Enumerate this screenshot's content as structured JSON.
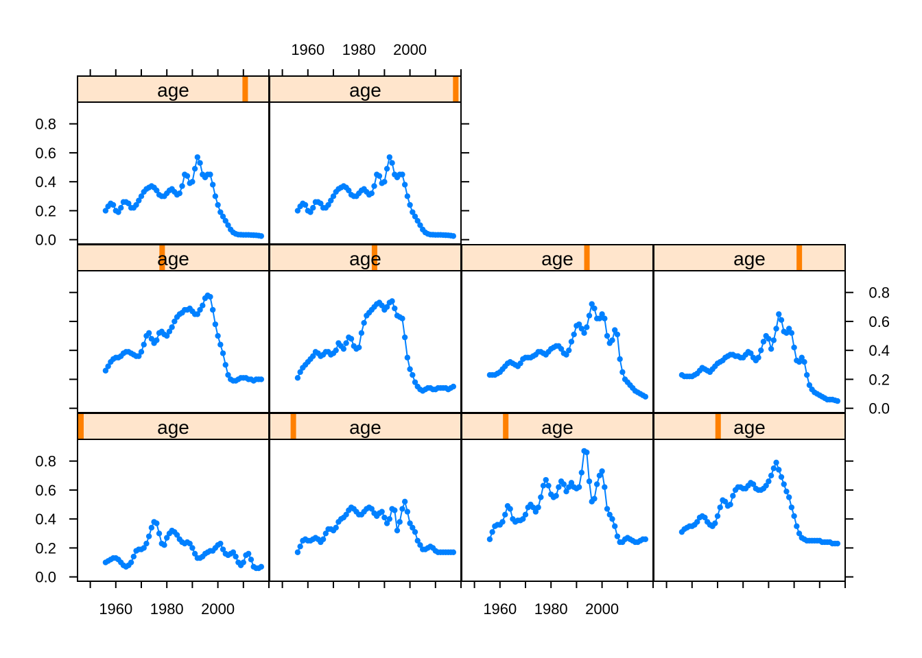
{
  "chart_data": {
    "type": "line",
    "layout": "lattice",
    "colors": {
      "series": "#0080ff",
      "strip_background": "#ffe5cc",
      "strip_indicator": "#ff8000",
      "frame": "#000000"
    },
    "x_ticks": [
      1960,
      1980,
      2000
    ],
    "y_ticks": [
      0.0,
      0.2,
      0.4,
      0.6,
      0.8
    ],
    "y_tick_labels": [
      "0.0",
      "0.2",
      "0.4",
      "0.6",
      "0.8"
    ],
    "xlim": [
      1945,
      2020
    ],
    "ylim": [
      -0.03,
      0.95
    ],
    "x": [
      1956,
      1957,
      1958,
      1959,
      1960,
      1961,
      1962,
      1963,
      1964,
      1965,
      1966,
      1967,
      1968,
      1969,
      1970,
      1971,
      1972,
      1973,
      1974,
      1975,
      1976,
      1977,
      1978,
      1979,
      1980,
      1981,
      1982,
      1983,
      1984,
      1985,
      1986,
      1987,
      1988,
      1989,
      1990,
      1991,
      1992,
      1993,
      1994,
      1995,
      1996,
      1997,
      1998,
      1999,
      2000,
      2001,
      2002,
      2003,
      2004,
      2005,
      2006,
      2007,
      2008,
      2009,
      2010,
      2011,
      2012,
      2013,
      2014,
      2015,
      2016,
      2017
    ],
    "panels": [
      {
        "strip_label": "age",
        "indicator": 0.89,
        "values": [
          0.2,
          0.23,
          0.25,
          0.24,
          0.2,
          0.19,
          0.22,
          0.26,
          0.26,
          0.25,
          0.22,
          0.22,
          0.24,
          0.27,
          0.3,
          0.33,
          0.35,
          0.36,
          0.37,
          0.36,
          0.34,
          0.31,
          0.3,
          0.3,
          0.32,
          0.34,
          0.35,
          0.33,
          0.31,
          0.32,
          0.37,
          0.45,
          0.44,
          0.39,
          0.4,
          0.49,
          0.57,
          0.53,
          0.45,
          0.43,
          0.45,
          0.45,
          0.38,
          0.3,
          0.24,
          0.19,
          0.16,
          0.13,
          0.1,
          0.07,
          0.05,
          0.04,
          0.035,
          0.034,
          0.033,
          0.033,
          0.033,
          0.032,
          0.031,
          0.03,
          0.028,
          0.025
        ]
      },
      {
        "strip_label": "age",
        "indicator": 0.99,
        "values": [
          0.2,
          0.23,
          0.25,
          0.24,
          0.2,
          0.19,
          0.22,
          0.26,
          0.26,
          0.25,
          0.22,
          0.22,
          0.24,
          0.27,
          0.3,
          0.33,
          0.35,
          0.36,
          0.37,
          0.36,
          0.34,
          0.31,
          0.3,
          0.3,
          0.32,
          0.34,
          0.35,
          0.33,
          0.31,
          0.32,
          0.37,
          0.45,
          0.44,
          0.39,
          0.4,
          0.49,
          0.57,
          0.53,
          0.45,
          0.43,
          0.45,
          0.45,
          0.38,
          0.3,
          0.24,
          0.19,
          0.16,
          0.13,
          0.1,
          0.07,
          0.05,
          0.04,
          0.035,
          0.034,
          0.033,
          0.033,
          0.033,
          0.032,
          0.031,
          0.03,
          0.028,
          0.025
        ]
      },
      {
        "strip_label": "age",
        "indicator": 0.44,
        "values": [
          0.26,
          0.29,
          0.32,
          0.34,
          0.35,
          0.35,
          0.36,
          0.38,
          0.39,
          0.39,
          0.38,
          0.37,
          0.36,
          0.36,
          0.39,
          0.44,
          0.5,
          0.52,
          0.48,
          0.45,
          0.47,
          0.52,
          0.53,
          0.51,
          0.5,
          0.53,
          0.56,
          0.6,
          0.63,
          0.65,
          0.66,
          0.68,
          0.68,
          0.69,
          0.67,
          0.65,
          0.65,
          0.68,
          0.71,
          0.76,
          0.78,
          0.77,
          0.68,
          0.58,
          0.5,
          0.44,
          0.38,
          0.3,
          0.23,
          0.2,
          0.19,
          0.19,
          0.2,
          0.21,
          0.21,
          0.21,
          0.2,
          0.2,
          0.19,
          0.2,
          0.2,
          0.2
        ]
      },
      {
        "strip_label": "age",
        "indicator": 0.55,
        "values": [
          0.21,
          0.25,
          0.28,
          0.3,
          0.32,
          0.34,
          0.36,
          0.39,
          0.38,
          0.36,
          0.37,
          0.39,
          0.39,
          0.37,
          0.38,
          0.4,
          0.45,
          0.43,
          0.41,
          0.45,
          0.49,
          0.48,
          0.43,
          0.41,
          0.42,
          0.52,
          0.59,
          0.64,
          0.66,
          0.68,
          0.7,
          0.72,
          0.73,
          0.71,
          0.68,
          0.7,
          0.73,
          0.74,
          0.69,
          0.64,
          0.63,
          0.62,
          0.49,
          0.35,
          0.27,
          0.23,
          0.18,
          0.15,
          0.13,
          0.12,
          0.13,
          0.14,
          0.14,
          0.13,
          0.13,
          0.14,
          0.14,
          0.14,
          0.14,
          0.13,
          0.14,
          0.15
        ]
      },
      {
        "strip_label": "age",
        "indicator": 0.66,
        "values": [
          0.23,
          0.23,
          0.23,
          0.24,
          0.25,
          0.27,
          0.29,
          0.31,
          0.32,
          0.31,
          0.3,
          0.29,
          0.31,
          0.34,
          0.35,
          0.35,
          0.35,
          0.36,
          0.37,
          0.39,
          0.39,
          0.38,
          0.37,
          0.39,
          0.41,
          0.42,
          0.43,
          0.43,
          0.41,
          0.38,
          0.37,
          0.4,
          0.46,
          0.51,
          0.57,
          0.58,
          0.55,
          0.52,
          0.56,
          0.64,
          0.72,
          0.69,
          0.62,
          0.62,
          0.65,
          0.62,
          0.5,
          0.45,
          0.47,
          0.54,
          0.51,
          0.34,
          0.25,
          0.2,
          0.18,
          0.16,
          0.14,
          0.12,
          0.11,
          0.1,
          0.09,
          0.08
        ]
      },
      {
        "strip_label": "age",
        "indicator": 0.77,
        "values": [
          0.23,
          0.22,
          0.22,
          0.22,
          0.22,
          0.23,
          0.24,
          0.26,
          0.28,
          0.27,
          0.26,
          0.25,
          0.27,
          0.29,
          0.31,
          0.32,
          0.33,
          0.35,
          0.36,
          0.37,
          0.37,
          0.36,
          0.36,
          0.35,
          0.35,
          0.37,
          0.39,
          0.38,
          0.35,
          0.33,
          0.35,
          0.4,
          0.46,
          0.5,
          0.48,
          0.41,
          0.47,
          0.55,
          0.65,
          0.61,
          0.53,
          0.52,
          0.55,
          0.52,
          0.42,
          0.33,
          0.32,
          0.35,
          0.32,
          0.23,
          0.16,
          0.13,
          0.11,
          0.1,
          0.09,
          0.08,
          0.07,
          0.06,
          0.06,
          0.06,
          0.055,
          0.05
        ]
      },
      {
        "strip_label": "age",
        "indicator": 0.0,
        "values": [
          0.1,
          0.11,
          0.12,
          0.13,
          0.13,
          0.12,
          0.1,
          0.08,
          0.07,
          0.08,
          0.1,
          0.14,
          0.18,
          0.19,
          0.19,
          0.2,
          0.23,
          0.28,
          0.34,
          0.38,
          0.37,
          0.3,
          0.23,
          0.22,
          0.27,
          0.3,
          0.32,
          0.31,
          0.29,
          0.26,
          0.24,
          0.23,
          0.24,
          0.23,
          0.2,
          0.16,
          0.13,
          0.13,
          0.14,
          0.16,
          0.17,
          0.18,
          0.18,
          0.2,
          0.22,
          0.23,
          0.19,
          0.16,
          0.15,
          0.16,
          0.17,
          0.14,
          0.1,
          0.08,
          0.1,
          0.15,
          0.16,
          0.12,
          0.07,
          0.06,
          0.06,
          0.07
        ]
      },
      {
        "strip_label": "age",
        "indicator": 0.11,
        "values": [
          0.17,
          0.21,
          0.25,
          0.26,
          0.25,
          0.25,
          0.26,
          0.27,
          0.26,
          0.24,
          0.26,
          0.3,
          0.33,
          0.33,
          0.32,
          0.34,
          0.38,
          0.4,
          0.41,
          0.43,
          0.46,
          0.48,
          0.47,
          0.45,
          0.43,
          0.43,
          0.45,
          0.47,
          0.48,
          0.47,
          0.44,
          0.42,
          0.44,
          0.45,
          0.41,
          0.37,
          0.4,
          0.47,
          0.46,
          0.32,
          0.38,
          0.47,
          0.52,
          0.45,
          0.37,
          0.34,
          0.31,
          0.25,
          0.22,
          0.19,
          0.19,
          0.2,
          0.21,
          0.2,
          0.18,
          0.17,
          0.17,
          0.17,
          0.17,
          0.17,
          0.17,
          0.17
        ]
      },
      {
        "strip_label": "age",
        "indicator": 0.22,
        "values": [
          0.26,
          0.31,
          0.35,
          0.36,
          0.36,
          0.38,
          0.43,
          0.49,
          0.47,
          0.4,
          0.38,
          0.39,
          0.39,
          0.4,
          0.43,
          0.48,
          0.5,
          0.48,
          0.45,
          0.48,
          0.55,
          0.63,
          0.67,
          0.63,
          0.57,
          0.55,
          0.56,
          0.62,
          0.66,
          0.64,
          0.59,
          0.62,
          0.65,
          0.62,
          0.61,
          0.62,
          0.72,
          0.87,
          0.86,
          0.66,
          0.52,
          0.54,
          0.64,
          0.7,
          0.73,
          0.62,
          0.47,
          0.43,
          0.4,
          0.35,
          0.28,
          0.24,
          0.24,
          0.26,
          0.27,
          0.26,
          0.25,
          0.24,
          0.24,
          0.25,
          0.26,
          0.26
        ]
      },
      {
        "strip_label": "age",
        "indicator": 0.33,
        "values": [
          0.31,
          0.33,
          0.34,
          0.35,
          0.35,
          0.36,
          0.38,
          0.41,
          0.42,
          0.41,
          0.38,
          0.36,
          0.35,
          0.37,
          0.42,
          0.48,
          0.53,
          0.52,
          0.49,
          0.5,
          0.56,
          0.6,
          0.62,
          0.62,
          0.61,
          0.61,
          0.63,
          0.65,
          0.64,
          0.61,
          0.6,
          0.6,
          0.61,
          0.63,
          0.66,
          0.7,
          0.75,
          0.79,
          0.74,
          0.69,
          0.64,
          0.59,
          0.55,
          0.48,
          0.42,
          0.35,
          0.3,
          0.27,
          0.26,
          0.25,
          0.25,
          0.25,
          0.25,
          0.25,
          0.25,
          0.24,
          0.24,
          0.24,
          0.24,
          0.23,
          0.23,
          0.23
        ]
      }
    ]
  }
}
